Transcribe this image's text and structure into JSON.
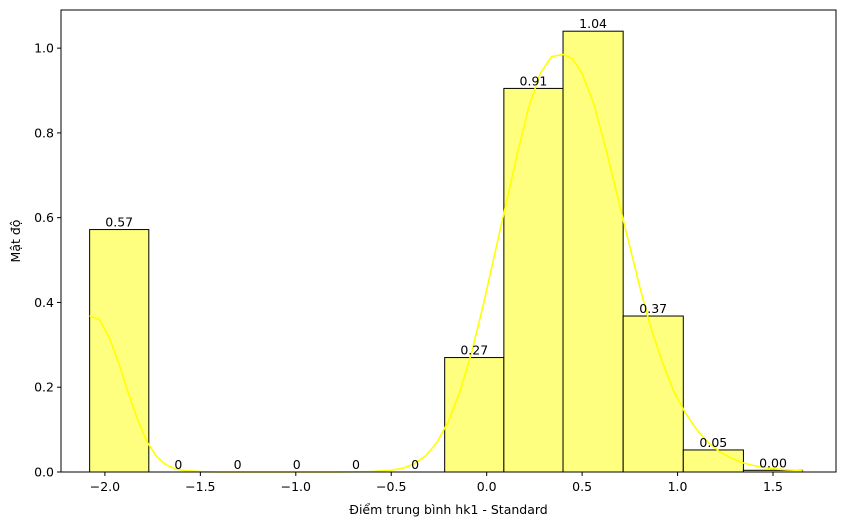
{
  "chart_data": {
    "type": "bar",
    "title": "",
    "xlabel": "Điểm trung bình hk1 - Standard",
    "ylabel": "Mật độ",
    "xlim": [
      -2.23,
      1.83
    ],
    "ylim": [
      0,
      1.09
    ],
    "x_ticks": [
      -2.0,
      -1.5,
      -1.0,
      -0.5,
      0.0,
      0.5,
      1.0,
      1.5
    ],
    "x_tick_labels": [
      "−2.0",
      "−1.5",
      "−1.0",
      "−0.5",
      "0.0",
      "0.5",
      "1.0",
      "1.5"
    ],
    "y_ticks": [
      0.0,
      0.2,
      0.4,
      0.6,
      0.8,
      1.0
    ],
    "y_tick_labels": [
      "0.0",
      "0.2",
      "0.4",
      "0.6",
      "0.8",
      "1.0"
    ],
    "bin_edges": [
      -2.08,
      -1.77,
      -1.46,
      -1.15,
      -0.84,
      -0.53,
      -0.22,
      0.09,
      0.4,
      0.715,
      1.03,
      1.345,
      1.655
    ],
    "values": [
      0.572,
      0,
      0,
      0,
      0,
      0,
      0.27,
      0.905,
      1.04,
      0.368,
      0.052,
      0.004
    ],
    "bar_labels": [
      "0.57",
      "0",
      "0",
      "0",
      "0",
      "0",
      "0.27",
      "0.91",
      "1.04",
      "0.37",
      "0.05",
      "0.00"
    ],
    "bar_fill": "#ffff7f",
    "bar_edge": "#000000",
    "kde": {
      "color": "#ffff00",
      "x": [
        -2.08,
        -2.03,
        -1.98,
        -1.93,
        -1.88,
        -1.83,
        -1.78,
        -1.73,
        -1.68,
        -1.63,
        -1.58,
        -1.5,
        -1.4,
        -1.2,
        -1.0,
        -0.8,
        -0.6,
        -0.5,
        -0.44,
        -0.38,
        -0.32,
        -0.26,
        -0.2,
        -0.14,
        -0.08,
        -0.02,
        0.04,
        0.1,
        0.16,
        0.22,
        0.28,
        0.34,
        0.4,
        0.45,
        0.5,
        0.56,
        0.62,
        0.68,
        0.74,
        0.8,
        0.86,
        0.92,
        0.98,
        1.04,
        1.1,
        1.16,
        1.22,
        1.28,
        1.34,
        1.4,
        1.46,
        1.52,
        1.58,
        1.655
      ],
      "y": [
        0.368,
        0.36,
        0.32,
        0.26,
        0.19,
        0.125,
        0.072,
        0.037,
        0.017,
        0.007,
        0.003,
        0.001,
        0.0,
        0.0,
        0.0,
        0.0,
        0.001,
        0.004,
        0.009,
        0.019,
        0.038,
        0.07,
        0.12,
        0.19,
        0.28,
        0.39,
        0.51,
        0.63,
        0.75,
        0.86,
        0.94,
        0.98,
        0.985,
        0.975,
        0.94,
        0.87,
        0.77,
        0.66,
        0.55,
        0.44,
        0.34,
        0.26,
        0.19,
        0.14,
        0.1,
        0.07,
        0.048,
        0.033,
        0.022,
        0.015,
        0.01,
        0.007,
        0.005,
        0.003
      ]
    },
    "grid": false,
    "legend": "none"
  }
}
